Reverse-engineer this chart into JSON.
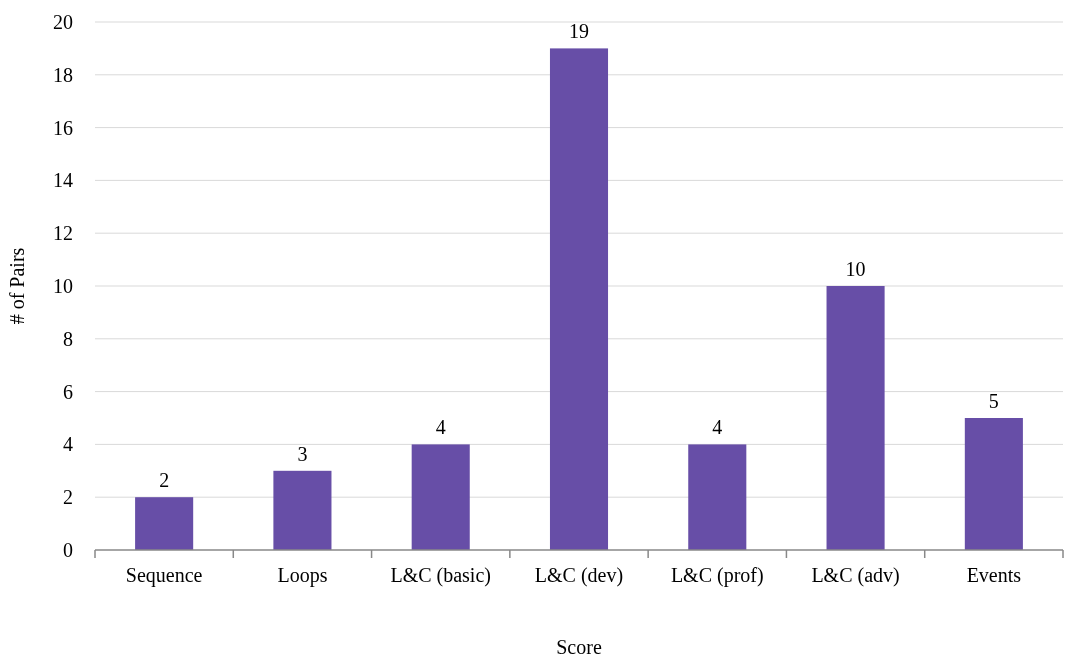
{
  "chart_data": {
    "type": "bar",
    "xlabel": "Score",
    "ylabel": "# of Pairs",
    "categories": [
      "Sequence",
      "Loops",
      "L&C (basic)",
      "L&C (dev)",
      "L&C (prof)",
      "L&C (adv)",
      "Events"
    ],
    "values": [
      2,
      3,
      4,
      19,
      4,
      10,
      5
    ],
    "color": "#674ea7",
    "ylim": [
      0,
      20
    ],
    "yticks": [
      0,
      2,
      4,
      6,
      8,
      10,
      12,
      14,
      16,
      18,
      20
    ],
    "grid": "y",
    "data_labels": true
  }
}
